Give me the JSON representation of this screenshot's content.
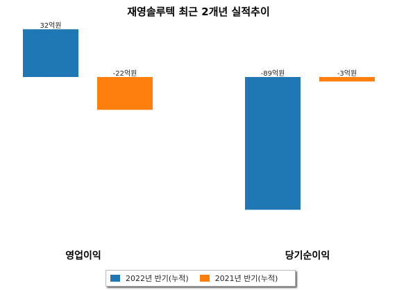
{
  "chart_data": {
    "type": "bar",
    "title": "재영솔루텍 최근 2개년 실적추이",
    "categories": [
      "영업이익",
      "당기순이익"
    ],
    "series": [
      {
        "name": "2022년 반기(누적)",
        "color": "#1f77b4",
        "values": [
          32,
          -89
        ],
        "labels": [
          "32억원",
          "-89억원"
        ]
      },
      {
        "name": "2021년 반기(누적)",
        "color": "#ff7f0e",
        "values": [
          -22,
          -3
        ],
        "labels": [
          "-22억원",
          "-3억원"
        ]
      }
    ],
    "ylim": [
      -105,
      32
    ],
    "grid": false,
    "legend_position": "bottom"
  }
}
